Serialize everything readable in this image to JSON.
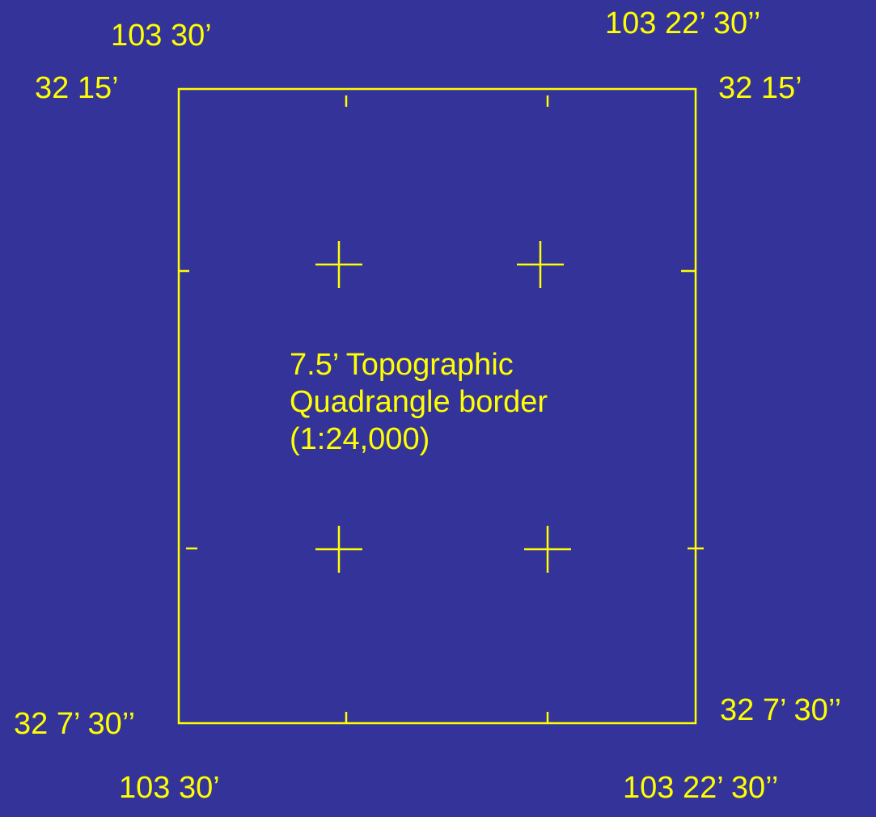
{
  "colors": {
    "background": "#333399",
    "foreground": "#ffff00"
  },
  "corner_labels": {
    "top_left_longitude": "103 30’",
    "top_right_longitude": "103 22’ 30’’",
    "top_left_latitude": "32 15’",
    "top_right_latitude": "32 15’",
    "bottom_left_latitude": "32 7’ 30’’",
    "bottom_right_latitude": "32 7’ 30’’",
    "bottom_left_longitude": "103 30’",
    "bottom_right_longitude": "103 22’ 30’’"
  },
  "description": {
    "line1": "7.5’ Topographic",
    "line2": "Quadrangle border",
    "line3": "(1:24,000)"
  }
}
